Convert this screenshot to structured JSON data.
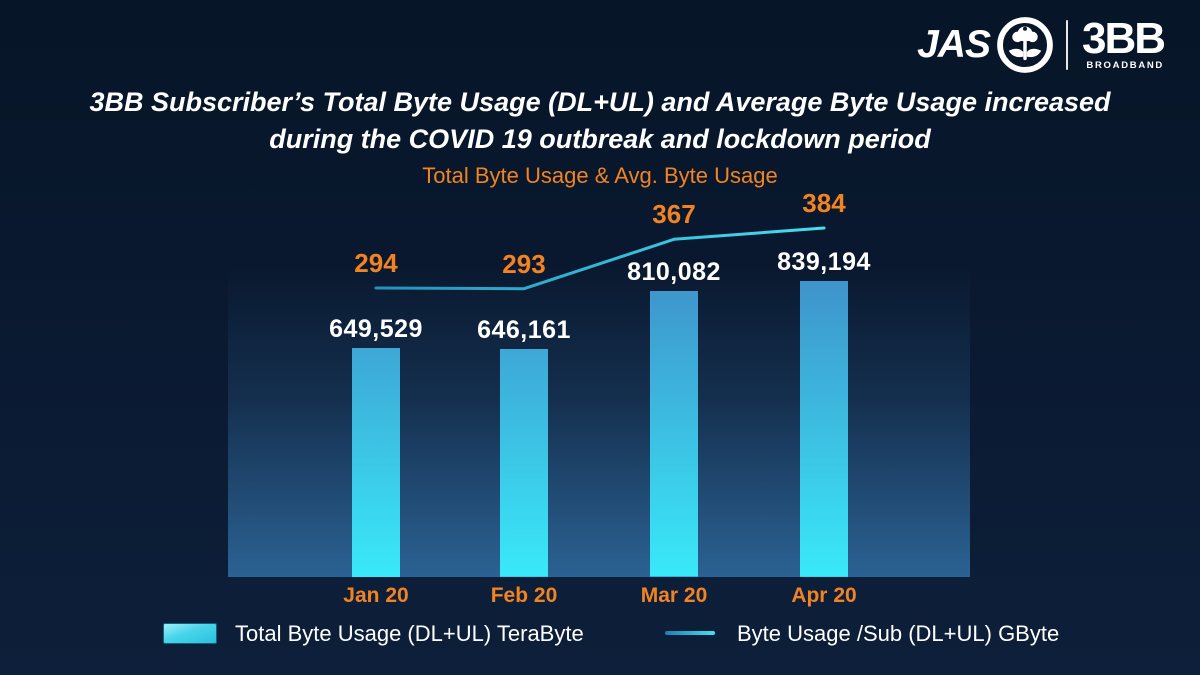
{
  "brand": {
    "jas": "JAS",
    "bbb": "3BB",
    "bbb_sub": "BROADBAND"
  },
  "title": {
    "line1": "3BB Subscriber’s Total Byte Usage (DL+UL) and Average Byte Usage increased",
    "line2": "during the COVID 19 outbreak and lockdown period"
  },
  "colors": {
    "background": "#0a1930",
    "accent_orange": "#f28322",
    "bar_top": "#3f93cb",
    "bar_bottom": "#39e9f9",
    "line": "#35c6de",
    "text": "#ffffff"
  },
  "chart_data": {
    "type": "combo",
    "title": "Total Byte Usage & Avg. Byte Usage",
    "categories": [
      "Jan 20",
      "Feb 20",
      "Mar 20",
      "Apr 20"
    ],
    "series": [
      {
        "name": "Total Byte Usage (DL+UL) TeraByte",
        "type": "bar",
        "values": [
          649529,
          646161,
          810082,
          839194
        ],
        "labels": [
          "649,529",
          "646,161",
          "810,082",
          "839,194"
        ],
        "color_top": "#3f93cb",
        "color_bottom": "#39e9f9"
      },
      {
        "name": "Byte Usage /Sub (DL+UL) GByte",
        "type": "line",
        "values": [
          294,
          293,
          367,
          384
        ],
        "labels": [
          "294",
          "293",
          "367",
          "384"
        ],
        "color": "#35c6de"
      }
    ],
    "xlabel": "",
    "ylabel": "",
    "grid": false,
    "legend_position": "bottom"
  }
}
